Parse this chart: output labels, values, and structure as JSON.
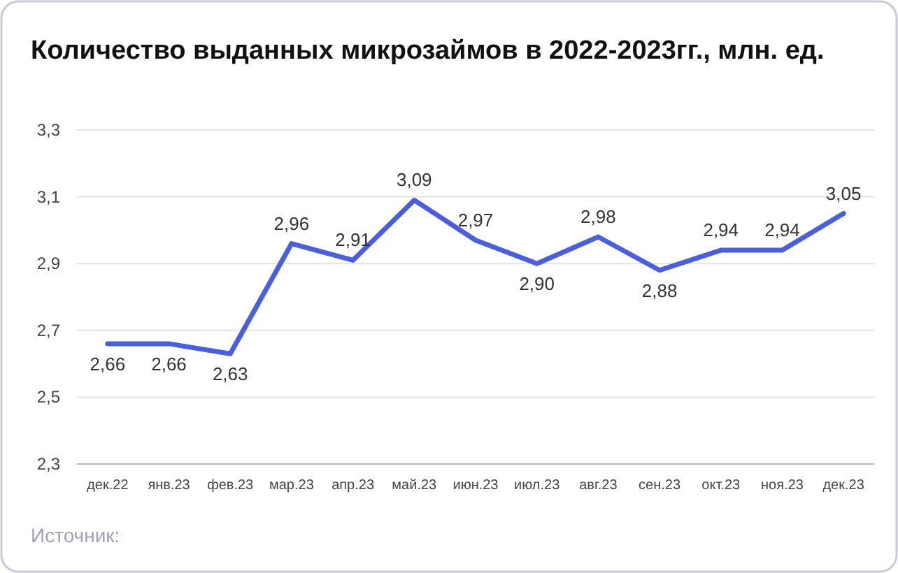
{
  "chart_data": {
    "type": "line",
    "title": "Количество выданных микрозаймов в 2022-2023гг., млн. ед.",
    "categories": [
      "дек.22",
      "янв.23",
      "фев.23",
      "мар.23",
      "апр.23",
      "май.23",
      "июн.23",
      "июл.23",
      "авг.23",
      "сен.23",
      "окт.23",
      "ноя.23",
      "дек.23"
    ],
    "series": [
      {
        "color": "#4a5fd9",
        "values": [
          2.66,
          2.66,
          2.63,
          2.96,
          2.91,
          3.09,
          2.97,
          2.9,
          2.98,
          2.88,
          2.94,
          2.94,
          3.05
        ]
      }
    ],
    "value_labels": [
      "2,66",
      "2,66",
      "2,63",
      "2,96",
      "2,91",
      "3,09",
      "2,97",
      "2,90",
      "2,98",
      "2,88",
      "2,94",
      "2,94",
      "3,05"
    ],
    "ylim": [
      2.3,
      3.3
    ],
    "yticks": [
      {
        "value": 2.3,
        "label": "2,3"
      },
      {
        "value": 2.5,
        "label": "2,5"
      },
      {
        "value": 2.7,
        "label": "2,7"
      },
      {
        "value": 2.9,
        "label": "2,9"
      },
      {
        "value": 3.1,
        "label": "3,1"
      },
      {
        "value": 3.3,
        "label": "3,3"
      }
    ],
    "grid": "y",
    "marker": "none",
    "line_style": "solid",
    "annotations": [
      "Источник:"
    ]
  }
}
